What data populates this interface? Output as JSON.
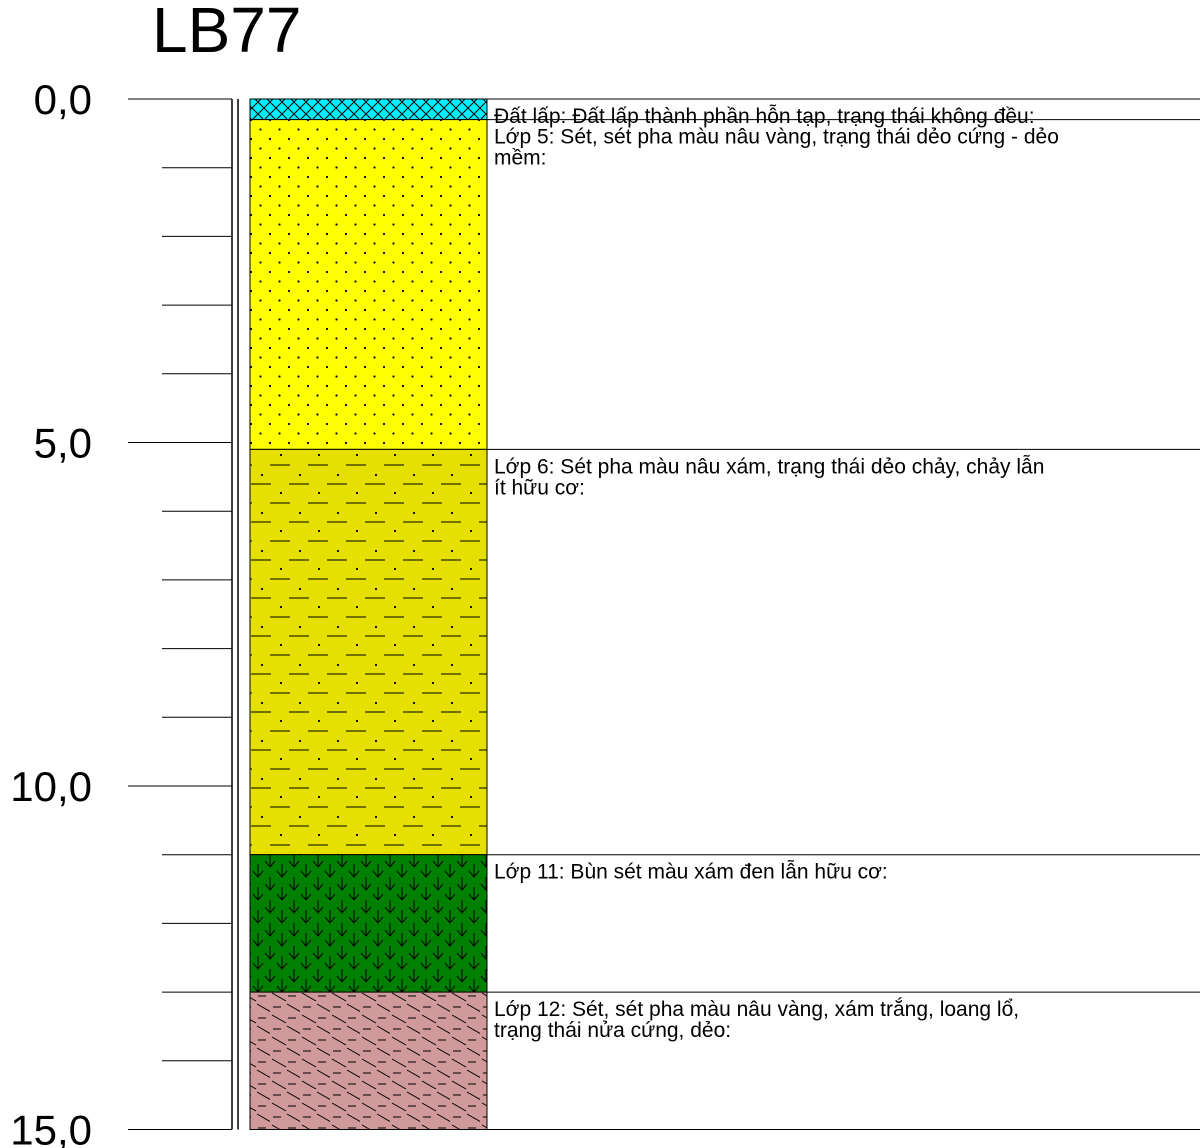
{
  "borehole": {
    "title": "LB77"
  },
  "depth_axis": {
    "min": 0,
    "max": 15,
    "major_step": 5,
    "minor_step": 1,
    "major_labels": [
      "0,0",
      "5,0",
      "10,0",
      "15,0"
    ]
  },
  "layers": [
    {
      "id": "fill",
      "top": 0.0,
      "bottom": 0.3,
      "color": "#00f0ff",
      "pattern": "crosshatch",
      "lines": [
        "Đất lấp: Đất lấp thành phần hỗn tạp, trạng thái không đều:"
      ]
    },
    {
      "id": "layer-5",
      "top": 0.3,
      "bottom": 5.1,
      "color": "#ffff00",
      "pattern": "dots",
      "lines": [
        "Lớp 5: Sét, sét pha màu nâu vàng, trạng thái dẻo cứng - dẻo",
        "mềm:"
      ]
    },
    {
      "id": "layer-6",
      "top": 5.1,
      "bottom": 11.0,
      "color": "#e5e000",
      "pattern": "dash-dot",
      "lines": [
        "Lớp 6: Sét pha màu nâu xám, trạng thái dẻo chảy, chảy lẫn",
        "ít hữu cơ:"
      ]
    },
    {
      "id": "layer-11",
      "top": 11.0,
      "bottom": 13.0,
      "color": "#008000",
      "pattern": "organic",
      "lines": [
        "Lớp 11: Bùn sét màu xám đen lẫn hữu cơ:"
      ]
    },
    {
      "id": "layer-12",
      "top": 13.0,
      "bottom": 15.0,
      "color": "#d09a9a",
      "pattern": "diagonal-dash",
      "lines": [
        "Lớp 12: Sét, sét pha màu nâu vàng, xám trắng, loang lổ,",
        "trạng thái nửa cứng, dẻo:"
      ]
    }
  ]
}
